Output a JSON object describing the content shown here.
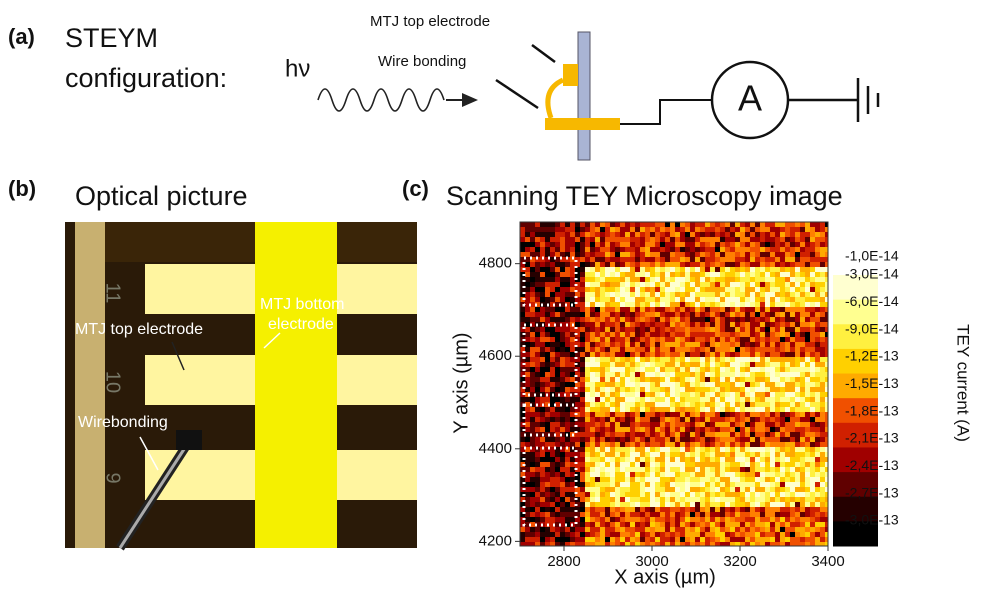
{
  "panel_a": {
    "label": "(a)",
    "title_lines": [
      "STEYM",
      "configuration:"
    ],
    "photon": "hν",
    "top_electrode": "MTJ top electrode",
    "wire_bonding": "Wire bonding",
    "ammeter": "A"
  },
  "panel_b": {
    "label": "(b)",
    "title": "Optical picture",
    "bottom_electrode_lines": [
      "MTJ bottom",
      "electrode"
    ],
    "top_electrode": "MTJ top electrode",
    "wirebonding": "Wirebonding",
    "numbers": [
      "11",
      "10",
      "9"
    ]
  },
  "panel_c": {
    "label": "(c)",
    "title": "Scanning TEY Microscopy image",
    "xlabel": "X axis (µm)",
    "ylabel": "Y axis (µm)",
    "xlim": [
      2700,
      3400
    ],
    "xticks": [
      2800,
      3000,
      3200,
      3400
    ],
    "ylim": [
      4190,
      4890
    ],
    "yticks": [
      4200,
      4400,
      4600,
      4800
    ],
    "colorbar_label": "TEY current (A)",
    "colorbar_ticks": [
      {
        "value": -1e-14,
        "label": "-1,0E-14"
      },
      {
        "value": -3e-14,
        "label": "-3,0E-14"
      },
      {
        "value": -6e-14,
        "label": "-6,0E-14"
      },
      {
        "value": -9e-14,
        "label": "-9,0E-14"
      },
      {
        "value": -1.2e-13,
        "label": "-1,2E-13"
      },
      {
        "value": -1.5e-13,
        "label": "-1,5E-13"
      },
      {
        "value": -1.8e-13,
        "label": "-1,8E-13"
      },
      {
        "value": -2.1e-13,
        "label": "-2,1E-13"
      },
      {
        "value": -2.4e-13,
        "label": "-2,4E-13"
      },
      {
        "value": -2.7e-13,
        "label": "-2,7E-13"
      },
      {
        "value": -3e-13,
        "label": "-3,0E-13"
      }
    ]
  }
}
